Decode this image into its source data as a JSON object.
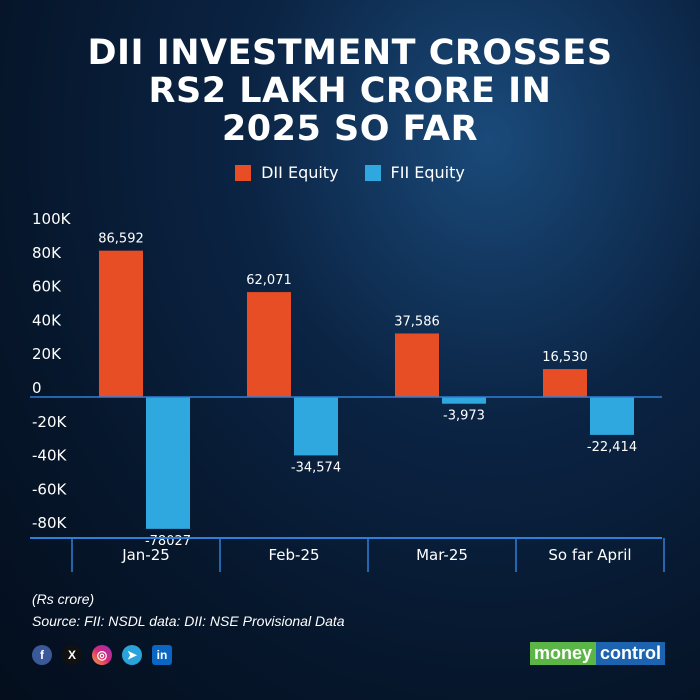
{
  "title_lines": [
    "DII INVESTMENT CROSSES",
    "RS2 LAKH CRORE IN",
    "2025 SO FAR"
  ],
  "colors": {
    "dii": "#e84e26",
    "fii": "#2fa8e0",
    "axis": "#2f7fd8"
  },
  "chart_data": {
    "type": "bar",
    "title": "DII INVESTMENT CROSSES RS2 LAKH CRORE IN 2025 SO FAR",
    "categories": [
      "Jan-25",
      "Feb-25",
      "Mar-25",
      "So far April"
    ],
    "series": [
      {
        "name": "DII Equity",
        "values": [
          86592,
          62071,
          37586,
          16530
        ],
        "labels": [
          "86,592",
          "62,071",
          "37,586",
          "16,530"
        ]
      },
      {
        "name": "FII Equity",
        "values": [
          -78027,
          -34574,
          -3973,
          -22414
        ],
        "labels": [
          "-78027",
          "-34,574",
          "-3,973",
          "-22,414"
        ]
      }
    ],
    "yticks": [
      "100K",
      "80K",
      "60K",
      "40K",
      "20K",
      "0",
      "-20K",
      "-40K",
      "-60K",
      "-80K"
    ],
    "ytick_values": [
      100000,
      80000,
      60000,
      40000,
      20000,
      0,
      -20000,
      -40000,
      -60000,
      -80000
    ],
    "ylim": [
      -83000,
      100000
    ],
    "legend": "top-center",
    "grid": false
  },
  "notes": {
    "unit": "(Rs crore)",
    "source": "Source: FII: NSDL data: DII: NSE Provisional Data"
  },
  "social": [
    "facebook-icon",
    "x-icon",
    "instagram-icon",
    "telegram-icon",
    "linkedin-icon"
  ],
  "logo": {
    "part1": "money",
    "part2": "control"
  }
}
